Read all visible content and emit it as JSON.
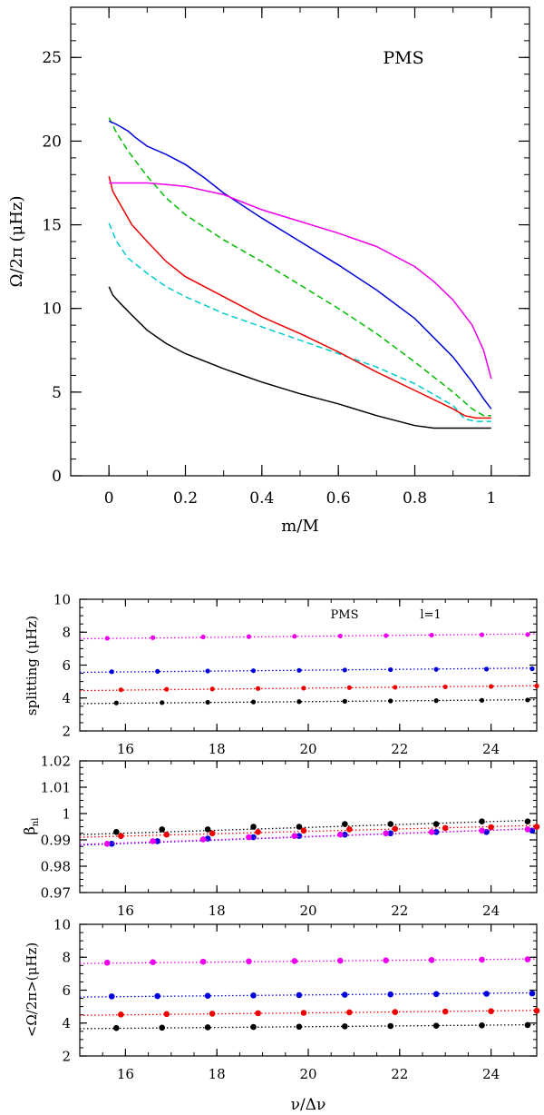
{
  "chart_data": [
    {
      "type": "line",
      "title": "",
      "annotation": "PMS",
      "xlabel": "m/M",
      "ylabel": "Ω/2π (μHz)",
      "xlim": [
        -0.1,
        1.1
      ],
      "ylim": [
        0,
        28
      ],
      "xticks": [
        0,
        0.2,
        0.4,
        0.6,
        0.8,
        1
      ],
      "xtick_labels": [
        "0",
        "0.2",
        "0.4",
        "0.6",
        "0.8",
        "1"
      ],
      "yticks": [
        0,
        5,
        10,
        15,
        20,
        25
      ],
      "ytick_labels": [
        "0",
        "5",
        "10",
        "15",
        "20",
        "25"
      ],
      "series": [
        {
          "name": "black",
          "color": "#000000",
          "dash": false,
          "x": [
            0,
            0.01,
            0.03,
            0.06,
            0.1,
            0.15,
            0.2,
            0.3,
            0.4,
            0.5,
            0.6,
            0.7,
            0.8,
            0.85,
            0.9,
            1.0
          ],
          "y": [
            11.3,
            10.8,
            10.3,
            9.6,
            8.7,
            7.9,
            7.3,
            6.4,
            5.6,
            4.9,
            4.3,
            3.6,
            3.0,
            2.85,
            2.85,
            2.85
          ]
        },
        {
          "name": "cyan",
          "color": "#00cccc",
          "dash": true,
          "x": [
            0,
            0.02,
            0.05,
            0.1,
            0.15,
            0.2,
            0.3,
            0.4,
            0.5,
            0.6,
            0.7,
            0.8,
            0.9,
            0.93,
            0.96,
            1.0
          ],
          "y": [
            15.1,
            14.0,
            13.0,
            12.1,
            11.3,
            10.7,
            9.7,
            8.9,
            8.1,
            7.3,
            6.5,
            5.5,
            4.2,
            3.4,
            3.25,
            3.25
          ]
        },
        {
          "name": "red",
          "color": "#ee0000",
          "dash": false,
          "x": [
            0,
            0.01,
            0.03,
            0.06,
            0.1,
            0.15,
            0.2,
            0.3,
            0.4,
            0.5,
            0.6,
            0.7,
            0.8,
            0.9,
            0.93,
            0.96,
            1.0
          ],
          "y": [
            17.9,
            17.0,
            16.2,
            15.0,
            14.0,
            12.8,
            11.9,
            10.7,
            9.5,
            8.5,
            7.4,
            6.2,
            5.1,
            4.0,
            3.6,
            3.45,
            3.45
          ]
        },
        {
          "name": "green",
          "color": "#00bb00",
          "dash": true,
          "x": [
            0,
            0.02,
            0.05,
            0.1,
            0.15,
            0.2,
            0.3,
            0.4,
            0.5,
            0.6,
            0.7,
            0.8,
            0.9,
            0.95,
            0.98,
            1.0
          ],
          "y": [
            21.4,
            20.5,
            19.4,
            17.9,
            16.6,
            15.6,
            14.1,
            12.8,
            11.4,
            10.0,
            8.5,
            6.8,
            5.0,
            4.0,
            3.6,
            3.6
          ]
        },
        {
          "name": "blue",
          "color": "#0000dd",
          "dash": false,
          "x": [
            0,
            0.02,
            0.05,
            0.07,
            0.1,
            0.15,
            0.2,
            0.25,
            0.3,
            0.4,
            0.5,
            0.6,
            0.7,
            0.8,
            0.9,
            0.95,
            0.98,
            1.0
          ],
          "y": [
            21.2,
            21.0,
            20.6,
            20.2,
            19.7,
            19.2,
            18.6,
            17.8,
            16.9,
            15.4,
            14.0,
            12.6,
            11.1,
            9.4,
            7.1,
            5.6,
            4.6,
            4.0
          ]
        },
        {
          "name": "magenta",
          "color": "#ee00ee",
          "dash": false,
          "x": [
            0,
            0.05,
            0.1,
            0.15,
            0.2,
            0.3,
            0.4,
            0.5,
            0.6,
            0.7,
            0.8,
            0.85,
            0.9,
            0.95,
            0.98,
            1.0
          ],
          "y": [
            17.5,
            17.5,
            17.5,
            17.4,
            17.3,
            16.8,
            15.9,
            15.2,
            14.5,
            13.7,
            12.5,
            11.6,
            10.5,
            9.0,
            7.5,
            5.8
          ]
        }
      ]
    },
    {
      "type": "scatter",
      "annotation": "PMS",
      "annotation2": "l=1",
      "xlabel": "",
      "ylabel": "splitting (μHz)",
      "xlim": [
        15,
        25
      ],
      "ylim": [
        2,
        10
      ],
      "xticks": [
        16,
        18,
        20,
        22,
        24
      ],
      "xtick_labels": [
        "16",
        "18",
        "20",
        "22",
        "24"
      ],
      "yticks": [
        2,
        4,
        6,
        8,
        10
      ],
      "ytick_labels": [
        "2",
        "4",
        "6",
        "8",
        "10"
      ],
      "fit_y0": 15,
      "fit_y1": 25,
      "series": [
        {
          "name": "magenta",
          "color": "#ee00ee",
          "x": [
            15.6,
            16.6,
            17.7,
            18.7,
            19.7,
            20.7,
            21.7,
            22.7,
            23.8,
            24.8
          ],
          "y": [
            7.63,
            7.67,
            7.71,
            7.73,
            7.75,
            7.77,
            7.79,
            7.82,
            7.84,
            7.86
          ],
          "fit": [
            7.6,
            7.9
          ]
        },
        {
          "name": "blue",
          "color": "#0000dd",
          "x": [
            15.7,
            16.7,
            17.8,
            18.8,
            19.8,
            20.8,
            21.8,
            22.8,
            23.9,
            24.9
          ],
          "y": [
            5.6,
            5.62,
            5.64,
            5.66,
            5.68,
            5.7,
            5.72,
            5.74,
            5.76,
            5.78
          ],
          "fit": [
            5.56,
            5.82
          ]
        },
        {
          "name": "red",
          "color": "#ee0000",
          "x": [
            15.9,
            16.9,
            17.9,
            18.9,
            19.9,
            20.9,
            21.9,
            23.0,
            24.0,
            25.0
          ],
          "y": [
            4.5,
            4.53,
            4.55,
            4.58,
            4.6,
            4.63,
            4.65,
            4.68,
            4.7,
            4.73
          ],
          "fit": [
            4.45,
            4.75
          ]
        },
        {
          "name": "black",
          "color": "#000000",
          "x": [
            15.8,
            16.8,
            17.8,
            18.8,
            19.8,
            20.8,
            21.8,
            22.8,
            23.8,
            24.8
          ],
          "y": [
            3.7,
            3.72,
            3.74,
            3.76,
            3.78,
            3.8,
            3.82,
            3.84,
            3.86,
            3.88
          ],
          "fit": [
            3.66,
            3.9
          ]
        }
      ]
    },
    {
      "type": "scatter",
      "xlabel": "",
      "ylabel": "β",
      "ylabel_sub": "nl",
      "xlim": [
        15,
        25
      ],
      "ylim": [
        0.97,
        1.02
      ],
      "xticks": [
        16,
        18,
        20,
        22,
        24
      ],
      "xtick_labels": [
        "16",
        "18",
        "20",
        "22",
        "24"
      ],
      "yticks": [
        0.97,
        0.98,
        0.99,
        1.0,
        1.01,
        1.02
      ],
      "ytick_labels": [
        "0.97",
        "0.98",
        "0.99",
        "1",
        "1.01",
        "1.02"
      ],
      "fit_y0": 15,
      "fit_y1": 25,
      "series": [
        {
          "name": "black",
          "color": "#000000",
          "x": [
            15.8,
            16.8,
            17.8,
            18.8,
            19.8,
            20.8,
            21.8,
            22.8,
            23.8,
            24.8
          ],
          "y": [
            0.993,
            0.994,
            0.994,
            0.995,
            0.995,
            0.996,
            0.996,
            0.996,
            0.997,
            0.997
          ],
          "fit": [
            0.992,
            0.9975
          ]
        },
        {
          "name": "red",
          "color": "#ee0000",
          "x": [
            15.9,
            16.9,
            17.9,
            18.9,
            19.9,
            20.9,
            21.9,
            23.0,
            24.0,
            25.0
          ],
          "y": [
            0.9915,
            0.992,
            0.9925,
            0.993,
            0.9935,
            0.994,
            0.9942,
            0.9945,
            0.9948,
            0.995
          ],
          "fit": [
            0.991,
            0.9955
          ]
        },
        {
          "name": "blue",
          "color": "#0000dd",
          "x": [
            15.7,
            16.7,
            17.8,
            18.8,
            19.8,
            20.8,
            21.8,
            22.8,
            23.9,
            24.9
          ],
          "y": [
            0.9885,
            0.9895,
            0.9905,
            0.991,
            0.9915,
            0.992,
            0.9925,
            0.993,
            0.993,
            0.9935
          ],
          "fit": [
            0.988,
            0.9943
          ]
        },
        {
          "name": "magenta",
          "color": "#ee00ee",
          "x": [
            15.6,
            16.6,
            17.7,
            18.7,
            19.7,
            20.7,
            21.7,
            22.7,
            23.8,
            24.8
          ],
          "y": [
            0.9885,
            0.9895,
            0.9902,
            0.991,
            0.9915,
            0.992,
            0.9925,
            0.993,
            0.9935,
            0.994
          ],
          "fit": [
            0.9883,
            0.9943
          ]
        }
      ]
    },
    {
      "type": "scatter",
      "xlabel": "ν/Δν",
      "ylabel": "<Ω/2π>(μHz)",
      "xlim": [
        15,
        25
      ],
      "ylim": [
        2,
        10
      ],
      "xticks": [
        16,
        18,
        20,
        22,
        24
      ],
      "xtick_labels": [
        "16",
        "18",
        "20",
        "22",
        "24"
      ],
      "yticks": [
        2,
        4,
        6,
        8,
        10
      ],
      "ytick_labels": [
        "2",
        "4",
        "6",
        "8",
        "10"
      ],
      "fit_y0": 15,
      "fit_y1": 25,
      "series": [
        {
          "name": "magenta",
          "color": "#ee00ee",
          "x": [
            15.6,
            16.6,
            17.7,
            18.7,
            19.7,
            20.7,
            21.7,
            22.7,
            23.8,
            24.8
          ],
          "y": [
            7.67,
            7.7,
            7.73,
            7.75,
            7.77,
            7.79,
            7.81,
            7.83,
            7.85,
            7.87
          ],
          "fit": [
            7.62,
            7.9
          ]
        },
        {
          "name": "blue",
          "color": "#0000dd",
          "x": [
            15.7,
            16.7,
            17.8,
            18.8,
            19.8,
            20.8,
            21.8,
            22.8,
            23.9,
            24.9
          ],
          "y": [
            5.62,
            5.64,
            5.66,
            5.68,
            5.7,
            5.72,
            5.74,
            5.76,
            5.78,
            5.8
          ],
          "fit": [
            5.58,
            5.84
          ]
        },
        {
          "name": "red",
          "color": "#ee0000",
          "x": [
            15.9,
            16.9,
            17.9,
            18.9,
            19.9,
            20.9,
            21.9,
            23.0,
            24.0,
            25.0
          ],
          "y": [
            4.52,
            4.55,
            4.57,
            4.6,
            4.62,
            4.65,
            4.67,
            4.7,
            4.72,
            4.75
          ],
          "fit": [
            4.47,
            4.77
          ]
        },
        {
          "name": "black",
          "color": "#000000",
          "x": [
            15.8,
            16.8,
            17.8,
            18.8,
            19.8,
            20.8,
            21.8,
            22.8,
            23.8,
            24.8
          ],
          "y": [
            3.7,
            3.72,
            3.74,
            3.76,
            3.78,
            3.8,
            3.82,
            3.84,
            3.86,
            3.88
          ],
          "fit": [
            3.66,
            3.9
          ]
        }
      ]
    }
  ]
}
